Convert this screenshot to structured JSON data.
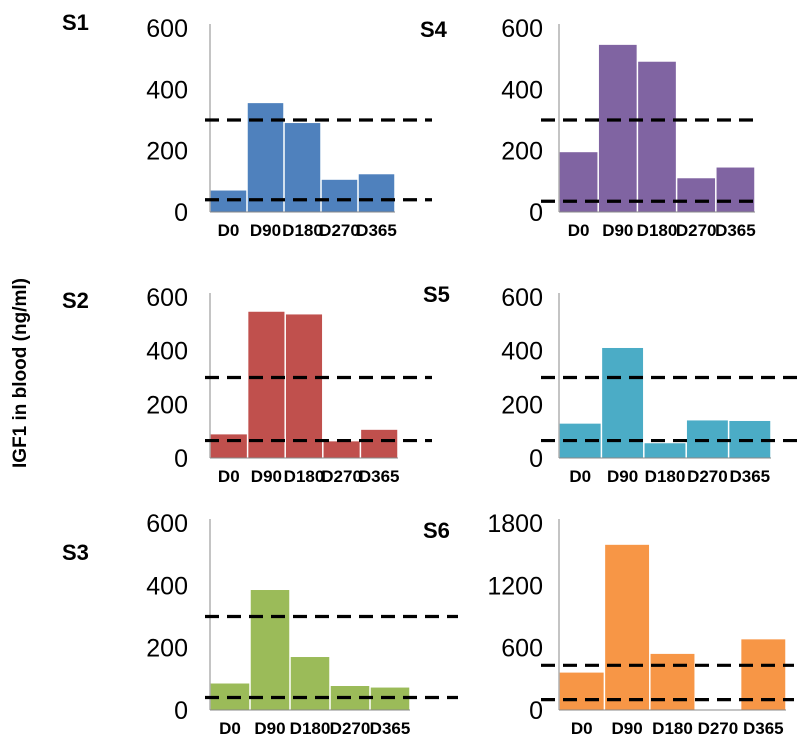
{
  "ylabel": "IGF1 in blood (ng/ml)",
  "chart_data": [
    {
      "type": "bar",
      "title": "S1",
      "categories": [
        "D0",
        "D90",
        "D180",
        "D270",
        "D365"
      ],
      "values": [
        70,
        355,
        290,
        105,
        123
      ],
      "ylim": [
        0,
        600
      ],
      "yticks": [
        0,
        200,
        400,
        600
      ],
      "reference_lines": [
        40,
        300
      ],
      "color": "#4f81bd"
    },
    {
      "type": "bar",
      "title": "S4",
      "categories": [
        "D0",
        "D90",
        "D180",
        "D270",
        "D365"
      ],
      "values": [
        195,
        545,
        490,
        110,
        145
      ],
      "ylim": [
        0,
        600
      ],
      "yticks": [
        0,
        200,
        400,
        600
      ],
      "reference_lines": [
        35,
        300
      ],
      "color": "#8064a2"
    },
    {
      "type": "bar",
      "title": "S2",
      "categories": [
        "D0",
        "D90",
        "D180",
        "D270",
        "D365"
      ],
      "values": [
        88,
        545,
        535,
        62,
        105
      ],
      "ylim": [
        0,
        600
      ],
      "yticks": [
        0,
        200,
        400,
        600
      ],
      "reference_lines": [
        65,
        300
      ],
      "color": "#c0504d"
    },
    {
      "type": "bar",
      "title": "S5",
      "categories": [
        "D0",
        "D90",
        "D180",
        "D270",
        "D365"
      ],
      "values": [
        128,
        410,
        55,
        140,
        138
      ],
      "ylim": [
        0,
        600
      ],
      "yticks": [
        0,
        200,
        400,
        600
      ],
      "reference_lines": [
        65,
        300
      ],
      "color": "#4bacc6"
    },
    {
      "type": "bar",
      "title": "S3",
      "categories": [
        "D0",
        "D90",
        "D180",
        "D270",
        "D365"
      ],
      "values": [
        85,
        385,
        170,
        77,
        72
      ],
      "ylim": [
        0,
        600
      ],
      "yticks": [
        0,
        200,
        400,
        600
      ],
      "reference_lines": [
        40,
        300
      ],
      "color": "#9bbb59"
    },
    {
      "type": "bar",
      "title": "S6",
      "categories": [
        "D0",
        "D90",
        "D180",
        "D270",
        "D365"
      ],
      "values": [
        360,
        1590,
        540,
        null,
        680
      ],
      "ylim": [
        0,
        1800
      ],
      "yticks": [
        0,
        600,
        1200,
        1800
      ],
      "reference_lines": [
        100,
        430
      ],
      "color": "#f79646"
    }
  ]
}
